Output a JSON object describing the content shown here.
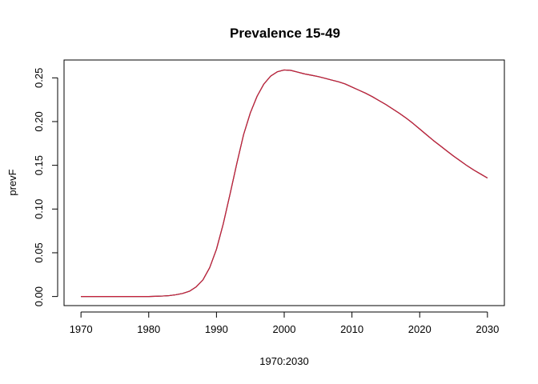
{
  "chart_data": {
    "type": "line",
    "title": "Prevalence 15-49",
    "xlabel": "1970:2030",
    "ylabel": "prevF",
    "xlim": [
      1967.5,
      2032.5
    ],
    "ylim": [
      -0.0104,
      0.2704
    ],
    "x_ticks": [
      1970,
      1980,
      1990,
      2000,
      2010,
      2020,
      2030
    ],
    "y_ticks": [
      0.0,
      0.05,
      0.1,
      0.15,
      0.2,
      0.25
    ],
    "y_tick_labels": [
      "0.00",
      "0.05",
      "0.10",
      "0.15",
      "0.20",
      "0.25"
    ],
    "grid": false,
    "series": [
      {
        "color": "#000000",
        "x": [
          1970,
          1971,
          1972,
          1973,
          1974,
          1975,
          1976,
          1977,
          1978,
          1979,
          1980,
          1981,
          1982,
          1983,
          1984,
          1985,
          1986,
          1987,
          1988,
          1989,
          1990,
          1991,
          1992,
          1993,
          1994,
          1995,
          1996,
          1997,
          1998,
          1999,
          2000,
          2001,
          2002,
          2003,
          2004,
          2005,
          2006,
          2007,
          2008,
          2009,
          2010,
          2011,
          2012,
          2013,
          2014,
          2015,
          2016,
          2017,
          2018,
          2019,
          2020,
          2021,
          2022,
          2023,
          2024,
          2025,
          2026,
          2027,
          2028,
          2029,
          2030
        ],
        "values": [
          0,
          0,
          0,
          0,
          0,
          0,
          0,
          0,
          0,
          0,
          0,
          0.0002,
          0.0005,
          0.001,
          0.002,
          0.0035,
          0.006,
          0.011,
          0.019,
          0.033,
          0.054,
          0.083,
          0.117,
          0.152,
          0.185,
          0.21,
          0.229,
          0.243,
          0.252,
          0.257,
          0.259,
          0.2585,
          0.2565,
          0.2545,
          0.253,
          0.2515,
          0.2495,
          0.2475,
          0.2455,
          0.243,
          0.2395,
          0.236,
          0.2325,
          0.2285,
          0.224,
          0.2195,
          0.2145,
          0.2095,
          0.204,
          0.198,
          0.1915,
          0.185,
          0.1785,
          0.1725,
          0.1665,
          0.1605,
          0.155,
          0.1495,
          0.1445,
          0.14,
          0.1355
        ]
      },
      {
        "color": "#c8223d",
        "x": [
          1970,
          1971,
          1972,
          1973,
          1974,
          1975,
          1976,
          1977,
          1978,
          1979,
          1980,
          1981,
          1982,
          1983,
          1984,
          1985,
          1986,
          1987,
          1988,
          1989,
          1990,
          1991,
          1992,
          1993,
          1994,
          1995,
          1996,
          1997,
          1998,
          1999,
          2000,
          2001,
          2002,
          2003,
          2004,
          2005,
          2006,
          2007,
          2008,
          2009,
          2010,
          2011,
          2012,
          2013,
          2014,
          2015,
          2016,
          2017,
          2018,
          2019,
          2020,
          2021,
          2022,
          2023,
          2024,
          2025,
          2026,
          2027,
          2028,
          2029,
          2030
        ],
        "values": [
          0,
          0,
          0,
          0,
          0,
          0,
          0,
          0,
          0,
          0,
          0,
          0.0002,
          0.0005,
          0.001,
          0.002,
          0.0035,
          0.006,
          0.011,
          0.019,
          0.033,
          0.054,
          0.083,
          0.117,
          0.152,
          0.185,
          0.21,
          0.229,
          0.243,
          0.252,
          0.257,
          0.259,
          0.2585,
          0.2565,
          0.2545,
          0.253,
          0.2515,
          0.2495,
          0.2475,
          0.2455,
          0.243,
          0.2395,
          0.236,
          0.2325,
          0.2285,
          0.224,
          0.2195,
          0.2145,
          0.2095,
          0.204,
          0.198,
          0.1915,
          0.185,
          0.1785,
          0.1725,
          0.1665,
          0.1605,
          0.155,
          0.1495,
          0.1445,
          0.14,
          0.1355
        ]
      }
    ]
  }
}
